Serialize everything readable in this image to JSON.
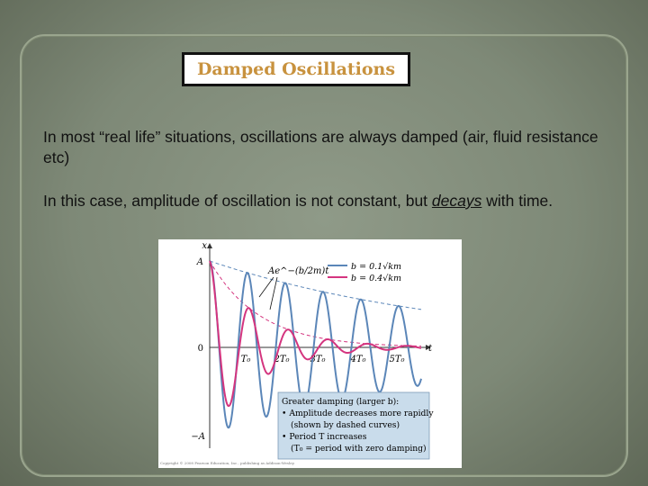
{
  "slide": {
    "title": "Damped Oscillations",
    "paragraph1": "In most “real life” situations, oscillations are always damped (air, fluid resistance etc)",
    "paragraph2_before": "In this case, amplitude of oscillation is not constant, but ",
    "paragraph2_emphasis": "decays",
    "paragraph2_after": " with time."
  },
  "figure": {
    "axis_x_label": "t",
    "axis_y_label": "x",
    "y_tick_top": "A",
    "y_tick_zero": "0",
    "y_tick_bottom": "−A",
    "x_ticks": [
      "T₀",
      "2T₀",
      "3T₀",
      "4T₀",
      "5T₀"
    ],
    "envelope_label": "Ae^−(b/2m)t",
    "legend": {
      "blue": "b = 0.1√km",
      "pink": "b = 0.4√km"
    },
    "info_box": {
      "line1": "Greater damping (larger b):",
      "line2": "• Amplitude decreases more rapidly",
      "line3": "(shown by dashed curves)",
      "line4": "• Period T increases",
      "line5": "(T₀ = period with zero damping)"
    },
    "copyright": "Copyright © 2008 Pearson Education, Inc., publishing as Addison-Wesley.",
    "colors": {
      "blue": "#5b86b8",
      "pink": "#d4357f"
    }
  }
}
